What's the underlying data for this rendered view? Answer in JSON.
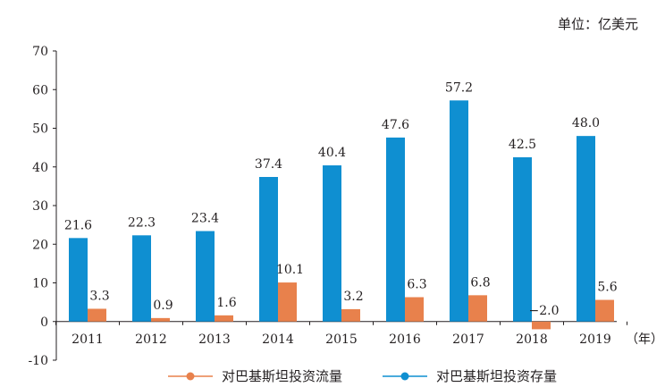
{
  "unit_label": "单位：亿美元",
  "chart_data": {
    "type": "bar",
    "categories": [
      "2011",
      "2012",
      "2013",
      "2014",
      "2015",
      "2016",
      "2017",
      "2018",
      "2019"
    ],
    "x_unit": "（年）",
    "series": [
      {
        "name": "对巴基斯坦投资存量",
        "color": "#0f8fd1",
        "values": [
          21.6,
          22.3,
          23.4,
          37.4,
          40.4,
          47.6,
          57.2,
          42.5,
          48.0
        ],
        "labels": [
          "21.6",
          "22.3",
          "23.4",
          "37.4",
          "40.4",
          "47.6",
          "57.2",
          "42.5",
          "48.0"
        ]
      },
      {
        "name": "对巴基斯坦投资流量",
        "color": "#e8814c",
        "values": [
          3.3,
          0.9,
          1.6,
          10.1,
          3.2,
          6.3,
          6.8,
          -2.0,
          5.6
        ],
        "labels": [
          "3.3",
          "0.9",
          "1.6",
          "10.1",
          "3.2",
          "6.3",
          "6.8",
          "−2.0",
          "5.6"
        ]
      }
    ],
    "y_ticks": [
      "-10",
      "0",
      "10",
      "20",
      "30",
      "40",
      "50",
      "60",
      "70"
    ],
    "ylim": [
      -10,
      70
    ],
    "grid": false,
    "legend": [
      {
        "label": "对巴基斯坦投资流量",
        "color": "#e8814c"
      },
      {
        "label": "对巴基斯坦投资存量",
        "color": "#0f8fd1"
      }
    ],
    "legend_position": "bottom"
  }
}
